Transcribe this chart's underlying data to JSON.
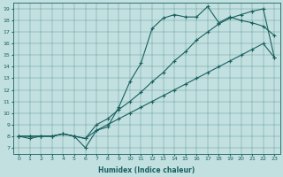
{
  "xlabel": "Humidex (Indice chaleur)",
  "bg_color": "#c2e0e0",
  "line_color": "#1a6060",
  "xlim": [
    -0.5,
    23.5
  ],
  "ylim": [
    6.5,
    19.5
  ],
  "yticks": [
    7,
    8,
    9,
    10,
    11,
    12,
    13,
    14,
    15,
    16,
    17,
    18,
    19
  ],
  "xticks": [
    0,
    1,
    2,
    3,
    4,
    5,
    6,
    7,
    8,
    9,
    10,
    11,
    12,
    13,
    14,
    15,
    16,
    17,
    18,
    19,
    20,
    21,
    22,
    23
  ],
  "line1_x": [
    0,
    1,
    2,
    3,
    4,
    5,
    6,
    7,
    8,
    9,
    10,
    11,
    12,
    13,
    14,
    15,
    16,
    17,
    18,
    19,
    20,
    21,
    22,
    23
  ],
  "line1_y": [
    8,
    7.8,
    8,
    8,
    8.2,
    8,
    7.0,
    8.5,
    8.8,
    10.5,
    12.7,
    14.3,
    17.3,
    18.2,
    18.5,
    18.3,
    18.3,
    19.2,
    17.8,
    18.3,
    18.0,
    17.8,
    17.5,
    16.7
  ],
  "line2_x": [
    0,
    1,
    2,
    3,
    4,
    5,
    6,
    7,
    8,
    9,
    10,
    11,
    12,
    13,
    14,
    15,
    16,
    17,
    18,
    19,
    20,
    21,
    22,
    23
  ],
  "line2_y": [
    8,
    8,
    8,
    8,
    8.2,
    8,
    7.8,
    9.0,
    9.5,
    10.3,
    11.0,
    11.8,
    12.7,
    13.5,
    14.5,
    15.3,
    16.3,
    17.0,
    17.7,
    18.2,
    18.5,
    18.8,
    19.0,
    14.8
  ],
  "line3_x": [
    0,
    1,
    2,
    3,
    4,
    5,
    6,
    7,
    8,
    9,
    10,
    11,
    12,
    13,
    14,
    15,
    16,
    17,
    18,
    19,
    20,
    21,
    22,
    23
  ],
  "line3_y": [
    8,
    8,
    8,
    8,
    8.2,
    8,
    7.8,
    8.5,
    9.0,
    9.5,
    10.0,
    10.5,
    11.0,
    11.5,
    12.0,
    12.5,
    13.0,
    13.5,
    14.0,
    14.5,
    15.0,
    15.5,
    16.0,
    14.8
  ]
}
